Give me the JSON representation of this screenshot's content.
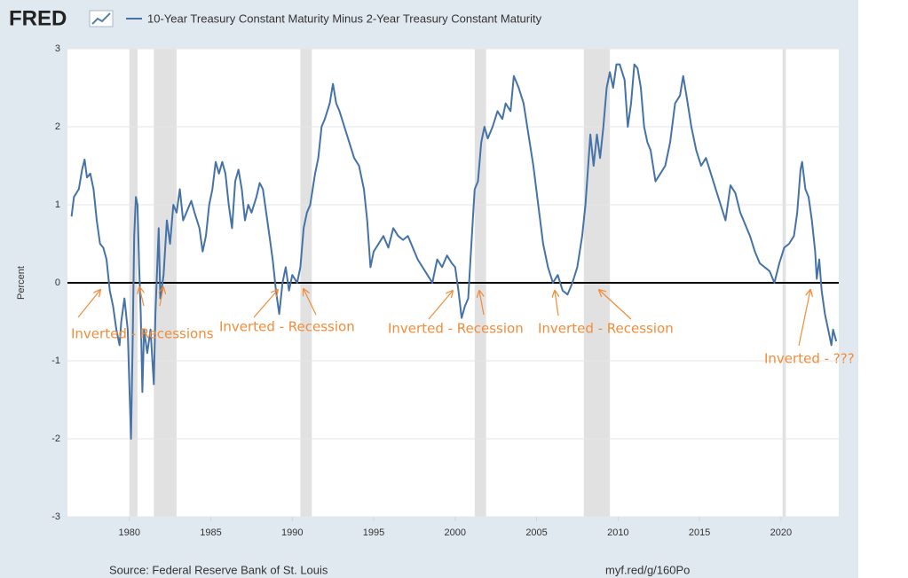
{
  "header": {
    "logo": "FRED"
  },
  "chart_data": {
    "type": "line",
    "ylabel": "Percent",
    "source": "Source: Federal Reserve Bank of St. Louis",
    "link": "myf.red/g/160Po",
    "xlim": [
      1976.2,
      2023.55
    ],
    "xticks": [
      1980,
      1985,
      1990,
      1995,
      2000,
      2005,
      2010,
      2015,
      2020
    ],
    "ylim": [
      -3,
      3
    ],
    "yticks": [
      -3,
      -2,
      -1,
      0,
      1,
      2,
      3
    ],
    "grid": true,
    "recessions": [
      [
        1980.0,
        1980.5
      ],
      [
        1981.5,
        1982.9
      ],
      [
        1990.5,
        1991.2
      ],
      [
        2001.2,
        2001.9
      ],
      [
        2007.9,
        2009.5
      ],
      [
        2020.1,
        2020.3
      ]
    ],
    "annotations": [
      "Inverted - Recessions",
      "Inverted - Recession",
      "Inverted - Recession",
      "Inverted - Recession",
      "Inverted - ???"
    ],
    "x": [
      1976.45,
      1976.6,
      1976.9,
      1977.1,
      1977.25,
      1977.4,
      1977.6,
      1977.8,
      1978.0,
      1978.2,
      1978.4,
      1978.6,
      1978.8,
      1979.0,
      1979.2,
      1979.4,
      1979.5,
      1979.7,
      1979.9,
      1980.0,
      1980.1,
      1980.2,
      1980.3,
      1980.4,
      1980.5,
      1980.6,
      1980.7,
      1980.8,
      1980.9,
      1981.1,
      1981.3,
      1981.5,
      1981.6,
      1981.8,
      1981.9,
      1982.1,
      1982.3,
      1982.5,
      1982.7,
      1982.9,
      1983.1,
      1983.3,
      1983.5,
      1983.8,
      1984.0,
      1984.3,
      1984.5,
      1984.7,
      1984.9,
      1985.1,
      1985.3,
      1985.5,
      1985.7,
      1985.9,
      1986.1,
      1986.3,
      1986.5,
      1986.7,
      1986.9,
      1987.1,
      1987.3,
      1987.5,
      1987.8,
      1988.0,
      1988.2,
      1988.4,
      1988.6,
      1988.8,
      1989.0,
      1989.2,
      1989.4,
      1989.6,
      1989.8,
      1990.0,
      1990.3,
      1990.5,
      1990.7,
      1990.9,
      1991.1,
      1991.4,
      1991.6,
      1991.8,
      1992.0,
      1992.3,
      1992.5,
      1992.7,
      1992.9,
      1993.2,
      1993.5,
      1993.8,
      1994.1,
      1994.4,
      1994.6,
      1994.8,
      1995.0,
      1995.3,
      1995.6,
      1995.9,
      1996.2,
      1996.5,
      1996.8,
      1997.1,
      1997.4,
      1997.7,
      1998.0,
      1998.3,
      1998.6,
      1998.9,
      1999.2,
      1999.5,
      1999.8,
      2000.0,
      2000.2,
      2000.4,
      2000.6,
      2000.8,
      2001.0,
      2001.2,
      2001.4,
      2001.6,
      2001.8,
      2002.0,
      2002.3,
      2002.6,
      2002.9,
      2003.1,
      2003.4,
      2003.6,
      2003.9,
      2004.2,
      2004.5,
      2004.8,
      2005.1,
      2005.4,
      2005.7,
      2006.0,
      2006.3,
      2006.6,
      2006.9,
      2007.2,
      2007.5,
      2007.8,
      2008.0,
      2008.2,
      2008.3,
      2008.5,
      2008.7,
      2008.9,
      2009.1,
      2009.3,
      2009.5,
      2009.7,
      2009.9,
      2010.1,
      2010.4,
      2010.6,
      2010.8,
      2011.0,
      2011.2,
      2011.4,
      2011.6,
      2011.8,
      2012.0,
      2012.3,
      2012.6,
      2012.9,
      2013.2,
      2013.5,
      2013.8,
      2014.0,
      2014.2,
      2014.5,
      2014.8,
      2015.1,
      2015.4,
      2015.7,
      2016.0,
      2016.3,
      2016.6,
      2016.9,
      2017.2,
      2017.5,
      2017.8,
      2018.1,
      2018.4,
      2018.7,
      2019.0,
      2019.3,
      2019.6,
      2019.9,
      2020.2,
      2020.5,
      2020.8,
      2021.0,
      2021.2,
      2021.3,
      2021.5,
      2021.7,
      2021.9,
      2022.1,
      2022.2,
      2022.35,
      2022.5,
      2022.7,
      2022.9,
      2023.1,
      2023.2,
      2023.4
    ],
    "series": [
      {
        "name": "10-Year Treasury Constant Maturity Minus 2-Year Treasury Constant Maturity",
        "color": "#4572a7",
        "values": [
          0.85,
          1.1,
          1.2,
          1.45,
          1.58,
          1.35,
          1.4,
          1.2,
          0.8,
          0.5,
          0.45,
          0.3,
          -0.1,
          -0.3,
          -0.6,
          -0.8,
          -0.5,
          -0.2,
          -0.6,
          -1.3,
          -2.0,
          -0.8,
          0.6,
          1.1,
          1.0,
          0.2,
          -0.4,
          -1.4,
          -0.6,
          -0.9,
          -0.6,
          -1.3,
          -0.4,
          0.7,
          -0.2,
          0.1,
          0.8,
          0.5,
          1.0,
          0.9,
          1.2,
          0.8,
          0.9,
          1.05,
          0.9,
          0.7,
          0.4,
          0.6,
          1.0,
          1.2,
          1.55,
          1.4,
          1.55,
          1.4,
          1.0,
          0.7,
          1.3,
          1.45,
          1.2,
          0.8,
          1.0,
          0.9,
          1.1,
          1.28,
          1.2,
          0.9,
          0.6,
          0.3,
          -0.1,
          -0.4,
          0.0,
          0.2,
          -0.1,
          0.1,
          0.0,
          0.2,
          0.7,
          0.9,
          1.0,
          1.4,
          1.6,
          2.0,
          2.1,
          2.3,
          2.55,
          2.3,
          2.2,
          2.0,
          1.8,
          1.6,
          1.5,
          1.2,
          0.8,
          0.2,
          0.4,
          0.5,
          0.6,
          0.45,
          0.7,
          0.6,
          0.55,
          0.6,
          0.45,
          0.3,
          0.2,
          0.1,
          0.0,
          0.3,
          0.2,
          0.35,
          0.25,
          0.2,
          -0.1,
          -0.45,
          -0.3,
          -0.2,
          0.5,
          1.2,
          1.3,
          1.8,
          2.0,
          1.85,
          2.0,
          2.2,
          2.1,
          2.3,
          2.2,
          2.65,
          2.5,
          2.3,
          1.9,
          1.5,
          1.0,
          0.5,
          0.2,
          0.0,
          0.1,
          -0.1,
          -0.15,
          0.0,
          0.2,
          0.6,
          1.0,
          1.6,
          1.9,
          1.5,
          1.9,
          1.6,
          2.0,
          2.5,
          2.7,
          2.5,
          2.8,
          2.8,
          2.6,
          2.0,
          2.3,
          2.8,
          2.75,
          2.5,
          2.0,
          1.8,
          1.7,
          1.3,
          1.4,
          1.5,
          1.8,
          2.3,
          2.4,
          2.65,
          2.4,
          2.0,
          1.7,
          1.5,
          1.6,
          1.4,
          1.2,
          1.0,
          0.8,
          1.25,
          1.15,
          0.9,
          0.75,
          0.6,
          0.4,
          0.25,
          0.2,
          0.15,
          0.0,
          0.25,
          0.45,
          0.5,
          0.6,
          0.9,
          1.45,
          1.55,
          1.2,
          1.1,
          0.8,
          0.4,
          0.05,
          0.3,
          -0.1,
          -0.4,
          -0.6,
          -0.8,
          -0.6,
          -0.75
        ]
      }
    ]
  }
}
